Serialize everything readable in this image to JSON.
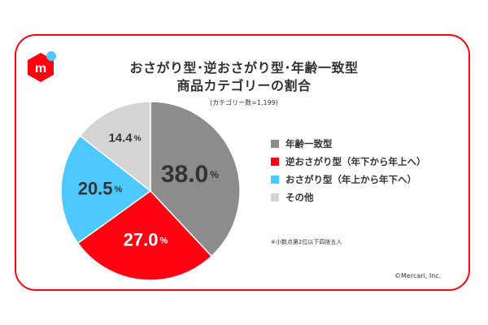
{
  "title_line1": "おさがり型･逆おさがり型･年齢一致型",
  "title_line2": "商品カテゴリーの割合",
  "subtitle": "(カテゴリー数=1,199)",
  "note": "※小数点第2位以下四捨五入",
  "copyright": "©Mercari, Inc.",
  "brand": {
    "logo_letter": "m",
    "logo_color": "#ff0211",
    "dot_color": "#4dc9ff"
  },
  "chart_data": {
    "type": "pie",
    "title": "おさがり型･逆おさがり型･年齢一致型 商品カテゴリーの割合",
    "slices": [
      {
        "label": "年齢一致型",
        "value": 38.0,
        "display": "38.0",
        "color": "#8c8c8c"
      },
      {
        "label": "逆おさがり型（年下から年上へ）",
        "value": 27.0,
        "display": "27.0",
        "color": "#ff0211"
      },
      {
        "label": "おさがり型（年上から年下へ）",
        "value": 20.5,
        "display": "20.5",
        "color": "#4dc9ff"
      },
      {
        "label": "その他",
        "value": 14.4,
        "display": "14.4",
        "color": "#d4d4d4"
      }
    ],
    "unit": "%",
    "legend_position": "right",
    "start": "top, clockwise"
  }
}
